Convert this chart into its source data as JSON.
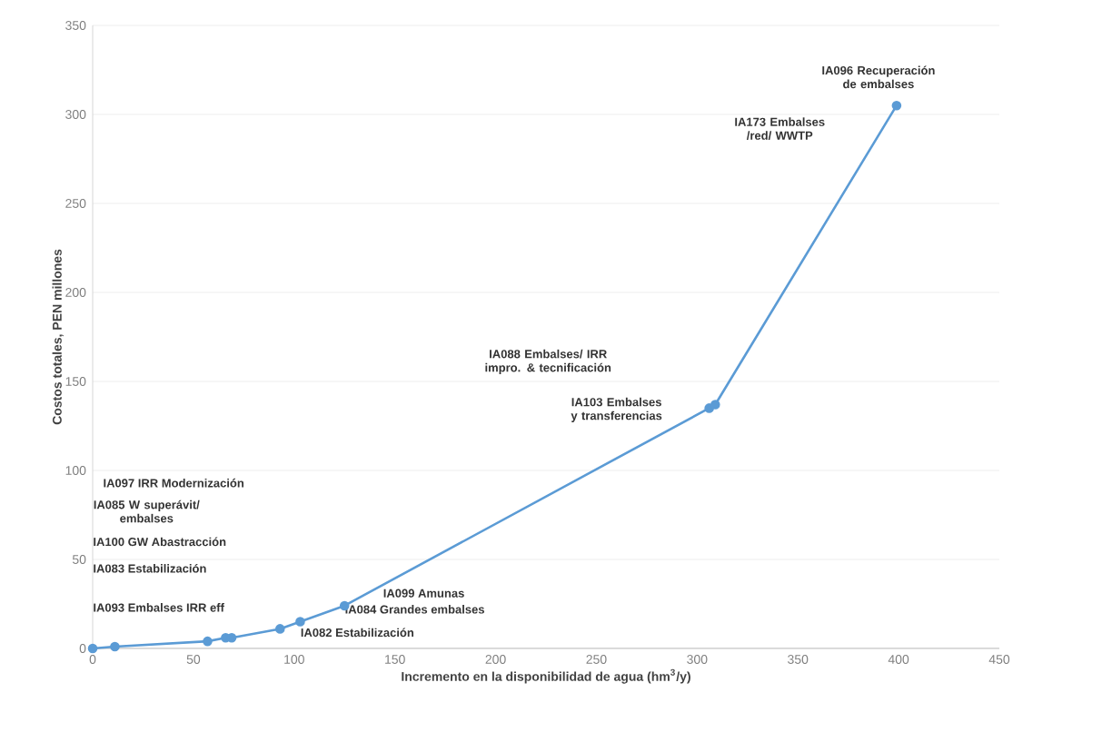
{
  "chart_data": {
    "type": "line",
    "xlabel": "Incremento en la disponibilidad de agua (hm$^{3}$/y)",
    "ylabel": "Costos totales, PEN millones",
    "x": [
      0,
      11,
      57,
      66,
      69,
      93,
      103,
      125,
      306,
      309,
      399
    ],
    "series": [
      {
        "color": "#5b9bd5",
        "values": [
          0,
          1,
          4,
          6,
          6,
          11,
          15,
          24,
          135,
          137,
          305
        ]
      }
    ],
    "xlim": [
      0,
      450
    ],
    "xticks": [
      0,
      50,
      100,
      150,
      200,
      250,
      300,
      350,
      400,
      450
    ],
    "ylim": [
      0,
      350
    ],
    "yticks": [
      0,
      50,
      100,
      150,
      200,
      250,
      300,
      350
    ],
    "grid": "y",
    "marker": "circle",
    "line_style": "solid",
    "annotations": [
      "IA096 Recuperación de embalses",
      "IA173 Embalses /red/ WWTP",
      "IA088 Embalses/ IRR impro. & tecnificación",
      "IA103 Embalses y transferencias",
      "IA097 IRR Modernización",
      "IA085 W superávit/ embalses",
      "IA100 GW Abastracción",
      "IA083 Estabilización",
      "IA093 Embalses IRR eff",
      "IA099 Amunas",
      "IA084 Grandes embalses",
      "IA082 Estabilización"
    ]
  }
}
